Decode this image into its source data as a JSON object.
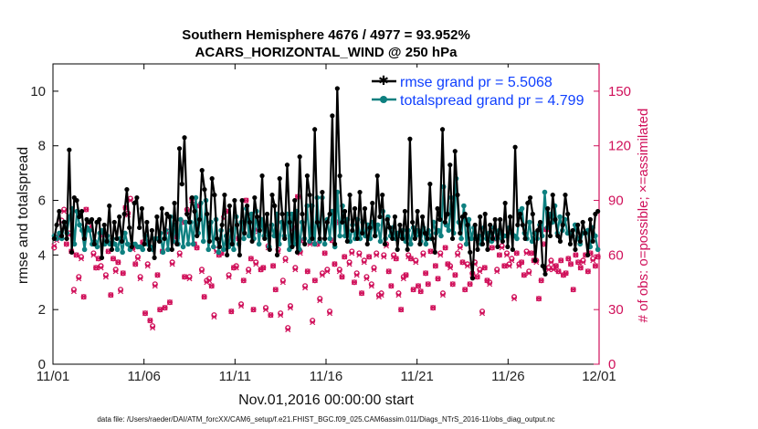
{
  "chart_data": {
    "type": "line",
    "title": "Southern Hemisphere 4676 / 4977 = 93.952%",
    "subtitle": "ACARS_HORIZONTAL_WIND @ 250 hPa",
    "xlabel": "Nov.01,2016 00:00:00 start",
    "ylabel": "rmse and totalspread",
    "y2label": "# of obs: o=possible; ×=assimilated",
    "footnote": "data file: /Users/raeder/DAI/ATM_forcXX/CAM6_setup/f.e21.FHIST_BGC.f09_025.CAM6assim.011/Diags_NTrS_2016-11/obs_diag_output.nc",
    "xticks": [
      "11/01",
      "11/06",
      "11/11",
      "11/16",
      "11/21",
      "11/26",
      "12/01"
    ],
    "xlim": [
      0,
      30
    ],
    "ylim": [
      0,
      11
    ],
    "yticks": [
      "0",
      "2",
      "4",
      "6",
      "8",
      "10"
    ],
    "y2lim": [
      0,
      165
    ],
    "y2ticks": [
      "0",
      "30",
      "60",
      "90",
      "120",
      "150"
    ],
    "colors": {
      "rmse": "#000000",
      "spread": "#0e8080",
      "obs": "#d0105a",
      "legend_text": "#1040ff"
    },
    "series": [
      {
        "name": "rmse grand pr = 5.5068",
        "axis": "left",
        "marker": "asterisk",
        "values": [
          4.6,
          5.1,
          5.6,
          4.7,
          5.2,
          4.6,
          7.85,
          4.1,
          6.1,
          6.0,
          5.4,
          5.6,
          4.6,
          5.3,
          5.2,
          5.3,
          4.4,
          5.2,
          5.3,
          3.9,
          5.1,
          4.5,
          5.8,
          4.2,
          5.2,
          4.6,
          5.4,
          4.5,
          5.5,
          6.4,
          5.0,
          4.3,
          5.9,
          6.1,
          5.0,
          5.7,
          4.4,
          5.2,
          4.2,
          4.9,
          3.9,
          5.4,
          4.5,
          5.7,
          4.6,
          5.5,
          5.4,
          4.2,
          5.9,
          4.4,
          7.9,
          6.6,
          8.3,
          5.5,
          5.2,
          6.1,
          5.6,
          4.7,
          5.3,
          7.1,
          6.4,
          5.5,
          4.5,
          6.8,
          6.2,
          4.6,
          4.3,
          5.1,
          6.2,
          4.0,
          5.8,
          4.4,
          6.0,
          5.1,
          4.0,
          6.0,
          4.8,
          5.8,
          5.2,
          4.5,
          6.1,
          5.4,
          4.9,
          6.9,
          4.6,
          5.5,
          4.2,
          6.2,
          5.8,
          4.0,
          6.8,
          5.5,
          4.6,
          7.3,
          5.2,
          4.3,
          6.0,
          4.1,
          7.6,
          5.5,
          4.4,
          6.9,
          6.2,
          4.6,
          8.6,
          5.2,
          4.6,
          6.3,
          4.6,
          5.2,
          5.5,
          9.1,
          4.4,
          10.1,
          6.9,
          5.2,
          5.6,
          4.5,
          6.2,
          4.9,
          5.7,
          4.6,
          6.3,
          4.8,
          5.7,
          4.4,
          5.0,
          5.9,
          4.7,
          6.9,
          5.4,
          6.2,
          4.4,
          5.3,
          5.0,
          4.6,
          5.4,
          4.2,
          5.1,
          4.6,
          5.6,
          4.2,
          8.25,
          5.2,
          4.6,
          5.6,
          4.4,
          5.4,
          4.8,
          4.6,
          6.6,
          4.6,
          4.1,
          5.7,
          5.3,
          8.6,
          5.2,
          5.5,
          7.3,
          4.6,
          7.8,
          6.2,
          4.8,
          5.4,
          5.5,
          5.1,
          4.1,
          3.15,
          5.1,
          4.2,
          5.4,
          4.4,
          5.5,
          4.2,
          5.1,
          4.6,
          5.3,
          4.3,
          5.3,
          4.5,
          5.9,
          4.3,
          5.4,
          4.2,
          7.95,
          5.1,
          5.5,
          5.1,
          4.6,
          5.9,
          6.1,
          5.5,
          3.8,
          4.9,
          5.2,
          3.6,
          3.3,
          5.7,
          4.7,
          6.2,
          5.3,
          4.7,
          4.5,
          5.1,
          6.2,
          5.5,
          4.4,
          4.9,
          4.2,
          5.1,
          4.5,
          5.2,
          4.8,
          4.0,
          5.3,
          4.5,
          5.5,
          5.6
        ]
      },
      {
        "name": "totalspread grand pr = 4.799",
        "axis": "left",
        "marker": "circle",
        "values": [
          4.7,
          4.6,
          4.8,
          4.6,
          5.2,
          4.8,
          5.4,
          5.7,
          4.4,
          5.6,
          5.1,
          4.9,
          4.2,
          5.0,
          4.9,
          4.4,
          4.5,
          4.3,
          4.8,
          4.9,
          4.4,
          4.7,
          4.4,
          4.6,
          4.4,
          4.2,
          4.6,
          4.1,
          4.8,
          4.4,
          4.2,
          4.4,
          4.4,
          4.3,
          4.3,
          4.2,
          4.7,
          4.4,
          4.3,
          4.2,
          4.6,
          4.6,
          4.8,
          4.1,
          4.9,
          4.2,
          5.4,
          4.5,
          5.1,
          4.4,
          5.3,
          4.3,
          5.2,
          4.4,
          5.2,
          4.4,
          6.1,
          4.8,
          5.9,
          4.5,
          6.0,
          4.2,
          5.2,
          4.3,
          5.3,
          4.1,
          4.9,
          4.2,
          4.7,
          4.3,
          4.9,
          4.2,
          5.4,
          4.4,
          5.2,
          4.6,
          5.7,
          4.7,
          5.5,
          4.6,
          5.6,
          4.4,
          5.3,
          4.7,
          5.0,
          4.3,
          5.1,
          4.7,
          5.5,
          4.4,
          5.2,
          4.7,
          5.5,
          4.2,
          5.5,
          4.4,
          5.6,
          4.2,
          5.2,
          4.6,
          5.8,
          4.5,
          5.8,
          4.4,
          6.1,
          4.5,
          6.1,
          4.4,
          5.3,
          4.6,
          5.6,
          4.3,
          6.3,
          4.7,
          5.8,
          4.7,
          5.3,
          4.5,
          5.1,
          4.6,
          5.3,
          4.6,
          5.2,
          4.7,
          5.1,
          4.6,
          5.2,
          4.7,
          5.1,
          4.5,
          5.6,
          4.6,
          5.4,
          4.7,
          5.0,
          4.6,
          4.8,
          4.7,
          4.9,
          4.5,
          4.9,
          4.4,
          5.0,
          4.7,
          4.9,
          4.5,
          5.0,
          4.4,
          4.9,
          4.6,
          5.2,
          4.8,
          4.9,
          4.7,
          6.5,
          5.1,
          4.9,
          6.1,
          4.8,
          6.8,
          5.2,
          4.6,
          5.8,
          4.4,
          5.3,
          4.6,
          5.0,
          4.6,
          4.7,
          4.4,
          5.0,
          4.6,
          4.8,
          4.5,
          5.0,
          4.6,
          4.9,
          4.6,
          4.7,
          4.7,
          5.0,
          4.8,
          4.7,
          4.6,
          5.6,
          5.7,
          4.8,
          4.6,
          5.2,
          4.5,
          4.8,
          4.6,
          5.1,
          4.7,
          6.3,
          5.0,
          5.5,
          5.2,
          5.8,
          4.8,
          5.4,
          4.9,
          5.3,
          4.8,
          4.8,
          4.7,
          5.1,
          4.6,
          4.4,
          4.8,
          4.8,
          4.9,
          4.3,
          5.0,
          4.7,
          4.2
        ]
      },
      {
        "name": "obs possible",
        "axis": "right",
        "marker": "o",
        "values": [
          64,
          69,
          70,
          79,
          85,
          66,
          72,
          62,
          41,
          60,
          48,
          59,
          37,
          85,
          76,
          74,
          61,
          53,
          58,
          54,
          72,
          49,
          62,
          38,
          58,
          52,
          56,
          41,
          50,
          86,
          83,
          91,
          64,
          55,
          59,
          48,
          67,
          28,
          55,
          24,
          21,
          44,
          49,
          30,
          62,
          31,
          73,
          34,
          56,
          68,
          70,
          61,
          78,
          48,
          85,
          48,
          91,
          66,
          64,
          87,
          52,
          37,
          46,
          47,
          43,
          27,
          63,
          60,
          61,
          81,
          84,
          49,
          29,
          53,
          54,
          69,
          33,
          46,
          90,
          52,
          58,
          30,
          56,
          74,
          52,
          53,
          31,
          65,
          27,
          54,
          41,
          63,
          28,
          46,
          58,
          20,
          32,
          75,
          53,
          92,
          62,
          68,
          43,
          51,
          67,
          24,
          46,
          66,
          36,
          50,
          61,
          52,
          29,
          68,
          55,
          78,
          52,
          48,
          59,
          71,
          56,
          62,
          45,
          50,
          61,
          39,
          57,
          48,
          59,
          44,
          53,
          61,
          38,
          39,
          60,
          66,
          51,
          43,
          60,
          58,
          39,
          30,
          48,
          49,
          60,
          58,
          41,
          57,
          43,
          40,
          61,
          50,
          44,
          62,
          31,
          54,
          47,
          61,
          39,
          64,
          55,
          54,
          44,
          49,
          61,
          65,
          56,
          41,
          55,
          44,
          50,
          56,
          48,
          52,
          29,
          53,
          46,
          45,
          64,
          69,
          52,
          60,
          65,
          54,
          61,
          55,
          58,
          37,
          61,
          55,
          56,
          49,
          62,
          51,
          61,
          57,
          57,
          36,
          46,
          66,
          74,
          53,
          57,
          53,
          54,
          51,
          57,
          49,
          50,
          58,
          55,
          41,
          60,
          56,
          53,
          57,
          60,
          51,
          61,
          58,
          54,
          59
        ]
      },
      {
        "name": "obs assimilated",
        "axis": "right",
        "marker": "x",
        "values": [
          65,
          68,
          70,
          78,
          84,
          66,
          71,
          62,
          40,
          60,
          47,
          58,
          37,
          85,
          75,
          74,
          60,
          53,
          58,
          53,
          71,
          48,
          62,
          38,
          58,
          51,
          56,
          40,
          50,
          86,
          82,
          90,
          63,
          55,
          58,
          47,
          67,
          28,
          54,
          24,
          20,
          43,
          49,
          30,
          62,
          31,
          72,
          34,
          55,
          67,
          70,
          60,
          78,
          48,
          84,
          47,
          90,
          66,
          64,
          87,
          51,
          37,
          45,
          46,
          43,
          26,
          62,
          60,
          61,
          80,
          84,
          48,
          29,
          53,
          53,
          69,
          32,
          46,
          90,
          51,
          58,
          30,
          55,
          73,
          52,
          53,
          30,
          64,
          27,
          54,
          41,
          62,
          27,
          45,
          57,
          19,
          31,
          74,
          52,
          92,
          61,
          68,
          42,
          51,
          66,
          23,
          46,
          66,
          35,
          49,
          61,
          51,
          28,
          68,
          55,
          78,
          51,
          48,
          59,
          71,
          55,
          61,
          45,
          49,
          60,
          39,
          56,
          47,
          59,
          43,
          52,
          60,
          37,
          38,
          59,
          65,
          51,
          43,
          59,
          58,
          38,
          30,
          47,
          49,
          59,
          58,
          41,
          56,
          43,
          40,
          60,
          50,
          44,
          62,
          31,
          54,
          47,
          60,
          38,
          64,
          55,
          53,
          44,
          49,
          60,
          64,
          56,
          41,
          54,
          44,
          49,
          55,
          48,
          51,
          28,
          53,
          46,
          44,
          64,
          69,
          51,
          60,
          64,
          54,
          60,
          54,
          57,
          36,
          61,
          54,
          56,
          49,
          61,
          50,
          61,
          57,
          56,
          36,
          46,
          66,
          74,
          52,
          56,
          52,
          54,
          51,
          57,
          49,
          50,
          58,
          55,
          41,
          60,
          56,
          53,
          56,
          60,
          51,
          61,
          57,
          54,
          59
        ]
      }
    ]
  }
}
